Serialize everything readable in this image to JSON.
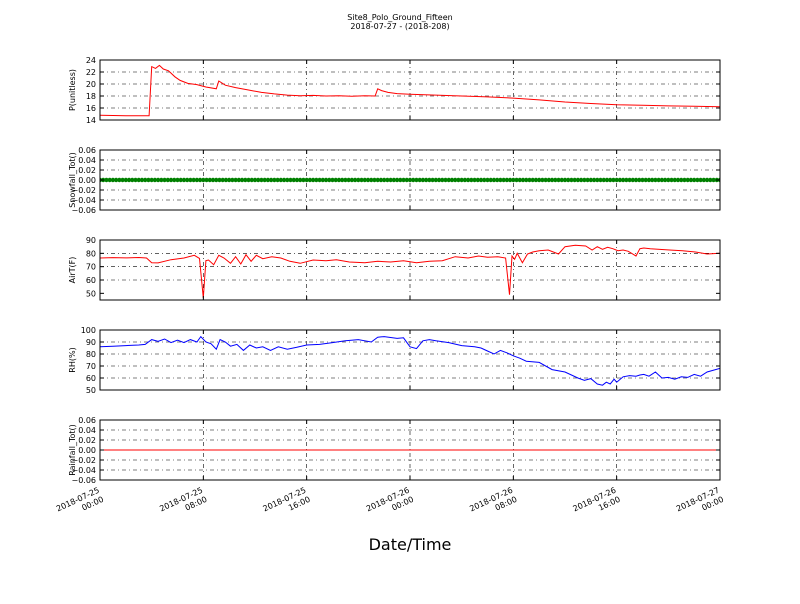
{
  "figure": {
    "title": "Site8_Polo_Ground_Fifteen",
    "subtitle": "2018-07-27 - (2018-208)",
    "xlabel": "Date/Time",
    "x_ticks": [
      {
        "t": 0,
        "line1": "2018-07-25",
        "line2": "00:00"
      },
      {
        "t": 8,
        "line1": "2018-07-25",
        "line2": "08:00"
      },
      {
        "t": 16,
        "line1": "2018-07-25",
        "line2": "16:00"
      },
      {
        "t": 24,
        "line1": "2018-07-26",
        "line2": "00:00"
      },
      {
        "t": 32,
        "line1": "2018-07-26",
        "line2": "08:00"
      },
      {
        "t": 40,
        "line1": "2018-07-26",
        "line2": "16:00"
      },
      {
        "t": 48,
        "line1": "2018-07-27",
        "line2": "00:00"
      }
    ]
  },
  "colors": {
    "red": "#ff0000",
    "green": "#008000",
    "blue": "#0000ff",
    "axis": "#000000"
  },
  "chart_data": [
    {
      "type": "line",
      "ylabel": "P(unitless)",
      "ylim": [
        14,
        24
      ],
      "yticks": [
        "14",
        "16",
        "18",
        "20",
        "22",
        "24"
      ],
      "ytick_values": [
        14,
        16,
        18,
        20,
        22,
        24
      ],
      "grid": true,
      "series": [
        {
          "color": "red",
          "x": [
            0,
            1,
            2,
            3,
            3.8,
            4.0,
            4.3,
            4.6,
            4.9,
            5.3,
            5.8,
            6.2,
            6.8,
            7.5,
            8.2,
            9.0,
            9.2,
            9.7,
            10.5,
            11.5,
            12.5,
            13.5,
            14.5,
            15.5,
            16.5,
            17.5,
            18.5,
            19.5,
            20.5,
            21.3,
            21.5,
            21.8,
            22.3,
            23,
            24,
            26,
            28,
            30,
            32,
            34,
            36,
            38,
            40,
            42,
            44,
            46,
            48
          ],
          "y": [
            14.8,
            14.75,
            14.7,
            14.7,
            14.7,
            22.9,
            22.6,
            23.1,
            22.5,
            22.2,
            21.2,
            20.6,
            20.1,
            19.9,
            19.5,
            19.2,
            20.5,
            19.8,
            19.4,
            19.0,
            18.6,
            18.35,
            18.15,
            18.05,
            18.1,
            18.0,
            18.05,
            17.95,
            18.05,
            18.0,
            19.2,
            18.9,
            18.6,
            18.4,
            18.3,
            18.15,
            18.0,
            17.85,
            17.65,
            17.35,
            17.0,
            16.75,
            16.55,
            16.45,
            16.35,
            16.3,
            16.2
          ]
        }
      ]
    },
    {
      "type": "scatter",
      "ylabel": "Snowfall_Tot()",
      "ylim": [
        -0.06,
        0.06
      ],
      "yticks": [
        "−0.06",
        "−0.04",
        "−0.02",
        "0.00",
        "0.02",
        "0.04",
        "0.06"
      ],
      "ytick_values": [
        -0.06,
        -0.04,
        -0.02,
        0,
        0.02,
        0.04,
        0.06
      ],
      "grid": true,
      "series": [
        {
          "color": "green",
          "value": 0,
          "x_start": 0,
          "x_end": 48,
          "step": 0.25
        }
      ]
    },
    {
      "type": "line",
      "ylabel": "AirT(F)",
      "ylim": [
        45,
        90
      ],
      "yticks": [
        "50",
        "60",
        "70",
        "80",
        "90"
      ],
      "ytick_values": [
        50,
        60,
        70,
        80,
        90
      ],
      "grid": true,
      "series": [
        {
          "color": "red",
          "x": [
            0,
            1,
            2,
            3,
            3.6,
            4.0,
            4.5,
            5.5,
            6.5,
            7.3,
            7.7,
            8.0,
            8.2,
            8.4,
            8.8,
            9.2,
            9.6,
            10.1,
            10.5,
            10.9,
            11.3,
            11.7,
            12.1,
            12.6,
            13.3,
            14.0,
            14.7,
            15.5,
            16.5,
            17.5,
            18.3,
            19.3,
            20.5,
            21.5,
            22.5,
            23.5,
            24.5,
            25.5,
            26.5,
            27.5,
            28.5,
            29.3,
            30.0,
            30.8,
            31.4,
            31.7,
            31.9,
            32.1,
            32.3,
            32.7,
            33.1,
            33.5,
            34.0,
            34.7,
            35.5,
            36.0,
            36.8,
            37.6,
            38.1,
            38.5,
            38.9,
            39.3,
            39.7,
            40.1,
            40.5,
            40.9,
            41.5,
            41.8,
            42.1,
            42.6,
            43.2,
            44.1,
            45.1,
            46.1,
            47,
            48
          ],
          "y": [
            76.5,
            76.8,
            76.6,
            76.9,
            76.5,
            73.0,
            72.8,
            75.2,
            76.5,
            78.5,
            76.2,
            46.5,
            74.5,
            75.0,
            71.5,
            78.5,
            76.5,
            72.5,
            77.5,
            72.0,
            79.0,
            74.0,
            78.5,
            76.0,
            77.5,
            76.5,
            74.0,
            72.5,
            75.0,
            74.5,
            75.2,
            73.5,
            73.0,
            74.0,
            73.5,
            74.5,
            73.0,
            74.0,
            74.5,
            77.5,
            76.5,
            78.0,
            77.0,
            77.5,
            76.5,
            49.0,
            78.0,
            75.5,
            80.0,
            73.0,
            79.5,
            81.0,
            82.0,
            82.5,
            79.5,
            85.0,
            86.0,
            85.5,
            82.5,
            85.0,
            83.0,
            84.5,
            83.5,
            82.0,
            82.5,
            81.5,
            78.0,
            83.5,
            84.0,
            83.5,
            83.0,
            82.5,
            82.0,
            81.0,
            79.5,
            80.0
          ]
        }
      ]
    },
    {
      "type": "line",
      "ylabel": "RH(%)",
      "ylim": [
        50,
        100
      ],
      "yticks": [
        "50",
        "60",
        "70",
        "80",
        "90",
        "100"
      ],
      "ytick_values": [
        50,
        60,
        70,
        80,
        90,
        100
      ],
      "grid": true,
      "series": [
        {
          "color": "blue",
          "x": [
            0,
            1,
            2,
            3,
            3.5,
            4.0,
            4.5,
            5.0,
            5.5,
            6.0,
            6.5,
            7.0,
            7.5,
            7.8,
            8.2,
            8.6,
            9.0,
            9.3,
            9.7,
            10.1,
            10.6,
            11.1,
            11.6,
            12.1,
            12.6,
            13.2,
            13.8,
            14.5,
            15.2,
            16,
            17,
            18,
            19,
            20,
            21,
            21.5,
            22,
            23,
            23.5,
            24,
            24.5,
            25,
            25.5,
            26,
            27,
            28,
            29,
            29.5,
            30,
            30.5,
            31,
            31.5,
            32,
            32.5,
            33,
            34,
            35,
            36,
            37,
            37.5,
            38,
            38.5,
            38.9,
            39.2,
            39.5,
            39.8,
            40,
            40.5,
            41,
            41.5,
            41.8,
            42.1,
            42.5,
            43,
            43.5,
            44,
            44.5,
            45,
            45.5,
            46,
            46.5,
            47,
            48
          ],
          "y": [
            86,
            86.5,
            87,
            87.5,
            88,
            92,
            90.5,
            92.5,
            89.5,
            91.5,
            89.5,
            92,
            90,
            94.5,
            90,
            88.5,
            84,
            92,
            90,
            86.5,
            88,
            83,
            87.5,
            85,
            86,
            83,
            86,
            84,
            85.5,
            87.5,
            88,
            89.5,
            91,
            92,
            90,
            94,
            94.5,
            93,
            93.5,
            86,
            84.5,
            91,
            92,
            91,
            89.5,
            87,
            86,
            85,
            82.5,
            80,
            83,
            81,
            78.5,
            76.5,
            74,
            73,
            67,
            65,
            60,
            58,
            59.5,
            55,
            54,
            56.5,
            55,
            59,
            56.5,
            61,
            62,
            61.5,
            62.5,
            63,
            61.5,
            65,
            60,
            60.5,
            59,
            61,
            60.5,
            63,
            61.5,
            65,
            68
          ]
        }
      ]
    },
    {
      "type": "line",
      "ylabel": "Rainfall_Tot()",
      "ylim": [
        -0.06,
        0.06
      ],
      "yticks": [
        "−0.06",
        "−0.04",
        "−0.02",
        "0.00",
        "0.02",
        "0.04",
        "0.06"
      ],
      "ytick_values": [
        -0.06,
        -0.04,
        -0.02,
        0,
        0.02,
        0.04,
        0.06
      ],
      "grid": true,
      "series": [
        {
          "color": "red",
          "x": [
            0,
            48
          ],
          "y": [
            0,
            0
          ]
        }
      ]
    }
  ]
}
